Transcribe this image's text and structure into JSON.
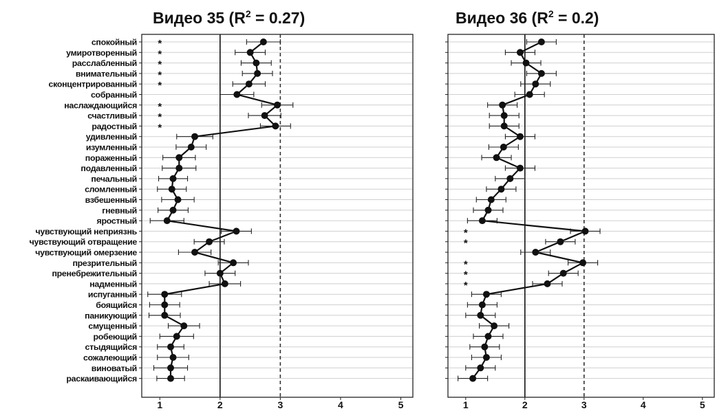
{
  "chart_data": [
    {
      "type": "line",
      "title_prefix": "Видео 35",
      "title_r2": "0.27",
      "xlim": [
        0.7,
        5.2
      ],
      "xticks": [
        1,
        2,
        3,
        4,
        5
      ],
      "ref_solid": 2,
      "ref_dashed": 3,
      "grid": true,
      "categories": [
        "спокойный",
        "умиротворенный",
        "расслабленный",
        "внимательный",
        "сконцентрированный",
        "собранный",
        "наслаждающийся",
        "счастливый",
        "радостный",
        "удивленный",
        "изумленный",
        "пораженный",
        "подавленный",
        "печальный",
        "сломленный",
        "взбешенный",
        "гневный",
        "яростный",
        "чувствующий неприязнь",
        "чувствующий отвращение",
        "чувствующий омерзение",
        "презрительный",
        "пренебрежительный",
        "надменный",
        "испуганный",
        "боящийся",
        "паникующий",
        "смущенный",
        "робеющий",
        "стыдящийся",
        "сожалеющий",
        "виноватый",
        "раскаивающийся"
      ],
      "values": [
        2.72,
        2.5,
        2.6,
        2.62,
        2.48,
        2.28,
        2.95,
        2.74,
        2.92,
        1.58,
        1.52,
        1.32,
        1.32,
        1.22,
        1.2,
        1.3,
        1.22,
        1.12,
        2.27,
        1.82,
        1.58,
        2.22,
        2.0,
        2.08,
        1.08,
        1.08,
        1.08,
        1.4,
        1.28,
        1.18,
        1.22,
        1.18,
        1.18
      ],
      "err": [
        0.28,
        0.25,
        0.25,
        0.25,
        0.27,
        0.28,
        0.26,
        0.27,
        0.25,
        0.3,
        0.25,
        0.27,
        0.28,
        0.24,
        0.24,
        0.27,
        0.25,
        0.28,
        0.25,
        0.25,
        0.27,
        0.25,
        0.25,
        0.26,
        0.28,
        0.25,
        0.26,
        0.26,
        0.28,
        0.22,
        0.26,
        0.28,
        0.23
      ],
      "stars": [
        true,
        true,
        true,
        true,
        true,
        false,
        true,
        true,
        true,
        false,
        false,
        false,
        false,
        false,
        false,
        false,
        false,
        false,
        false,
        false,
        false,
        false,
        false,
        false,
        false,
        false,
        false,
        false,
        false,
        false,
        false,
        false,
        false
      ]
    },
    {
      "type": "line",
      "title_prefix": "Видео 36",
      "title_r2": "0.2",
      "xlim": [
        0.7,
        5.2
      ],
      "xticks": [
        1,
        2,
        3,
        4,
        5
      ],
      "ref_solid": 2,
      "ref_dashed": 3,
      "grid": true,
      "values": [
        2.28,
        1.92,
        2.02,
        2.28,
        2.18,
        2.08,
        1.62,
        1.65,
        1.65,
        1.92,
        1.64,
        1.52,
        1.92,
        1.75,
        1.6,
        1.43,
        1.38,
        1.28,
        3.02,
        2.6,
        2.18,
        2.98,
        2.65,
        2.38,
        1.35,
        1.28,
        1.25,
        1.48,
        1.38,
        1.32,
        1.35,
        1.25,
        1.12
      ],
      "err": [
        0.25,
        0.25,
        0.25,
        0.25,
        0.25,
        0.25,
        0.25,
        0.25,
        0.25,
        0.25,
        0.25,
        0.25,
        0.25,
        0.25,
        0.25,
        0.25,
        0.25,
        0.25,
        0.25,
        0.25,
        0.25,
        0.25,
        0.25,
        0.25,
        0.25,
        0.25,
        0.25,
        0.25,
        0.25,
        0.25,
        0.25,
        0.25,
        0.25
      ],
      "stars": [
        false,
        false,
        false,
        false,
        false,
        false,
        false,
        false,
        false,
        false,
        false,
        false,
        false,
        false,
        false,
        false,
        false,
        false,
        true,
        true,
        false,
        true,
        true,
        true,
        false,
        false,
        false,
        false,
        false,
        false,
        false,
        false,
        false
      ]
    }
  ]
}
